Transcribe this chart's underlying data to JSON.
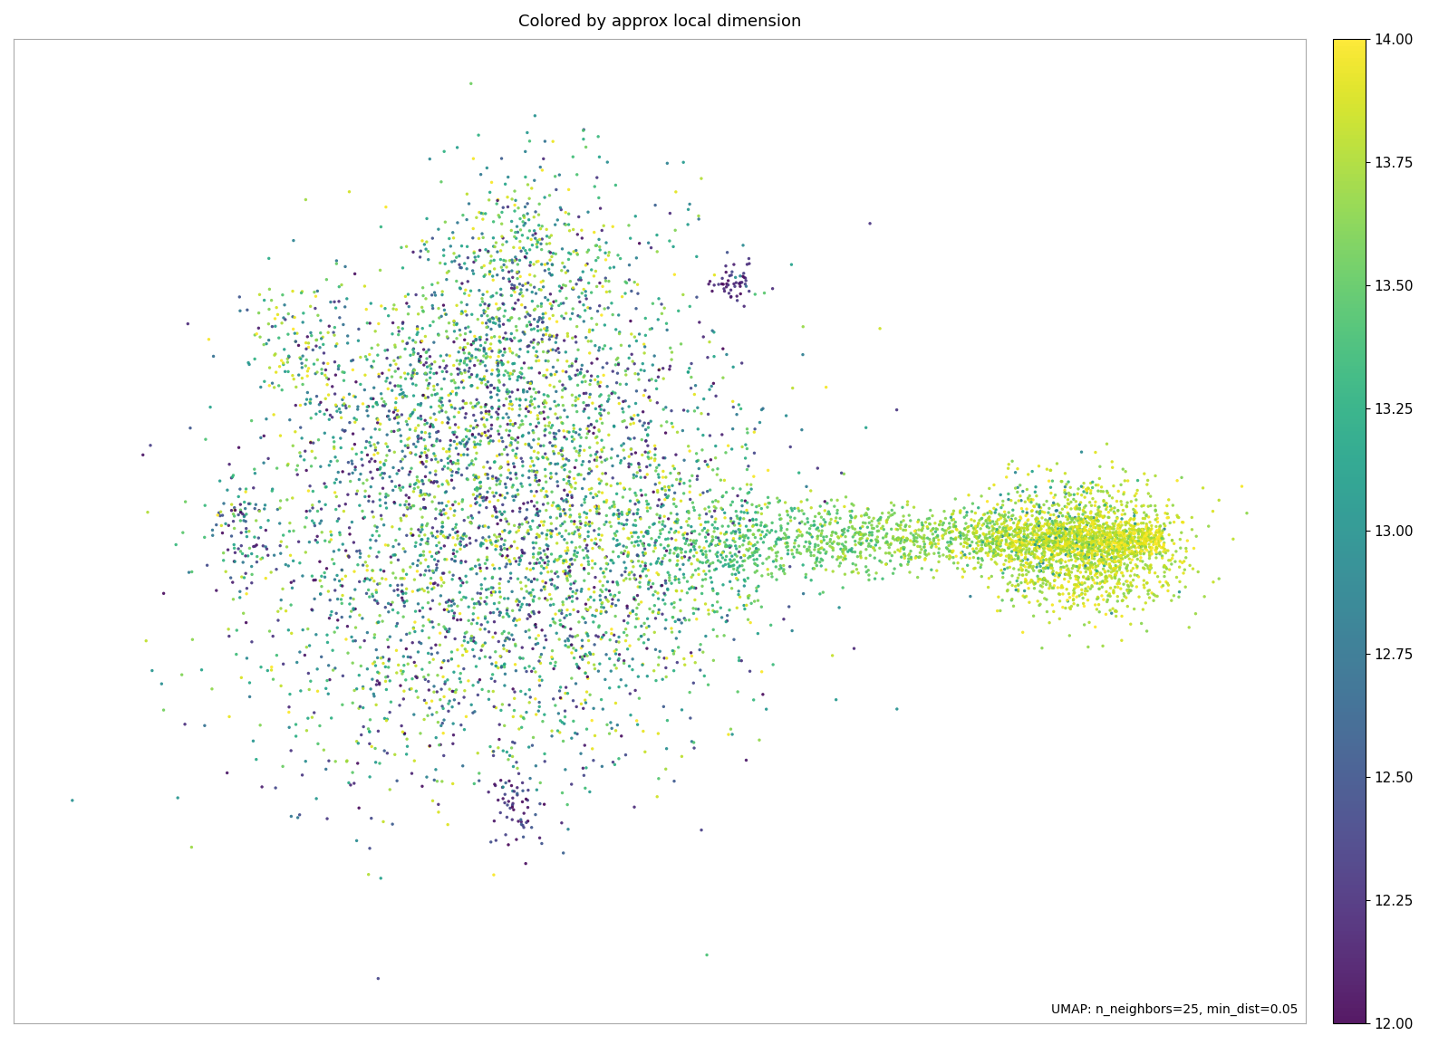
{
  "title": "Colored by approx local dimension",
  "colormap": "viridis",
  "vmin": 12.0,
  "vmax": 14.0,
  "colorbar_ticks": [
    12.0,
    12.25,
    12.5,
    12.75,
    13.0,
    13.25,
    13.5,
    13.75,
    14.0
  ],
  "annotation": "UMAP: n_neighbors=25, min_dist=0.05",
  "seed": 42,
  "background_color": "white",
  "title_fontsize": 13,
  "annotation_fontsize": 10,
  "point_size": 6,
  "point_alpha": 0.9
}
